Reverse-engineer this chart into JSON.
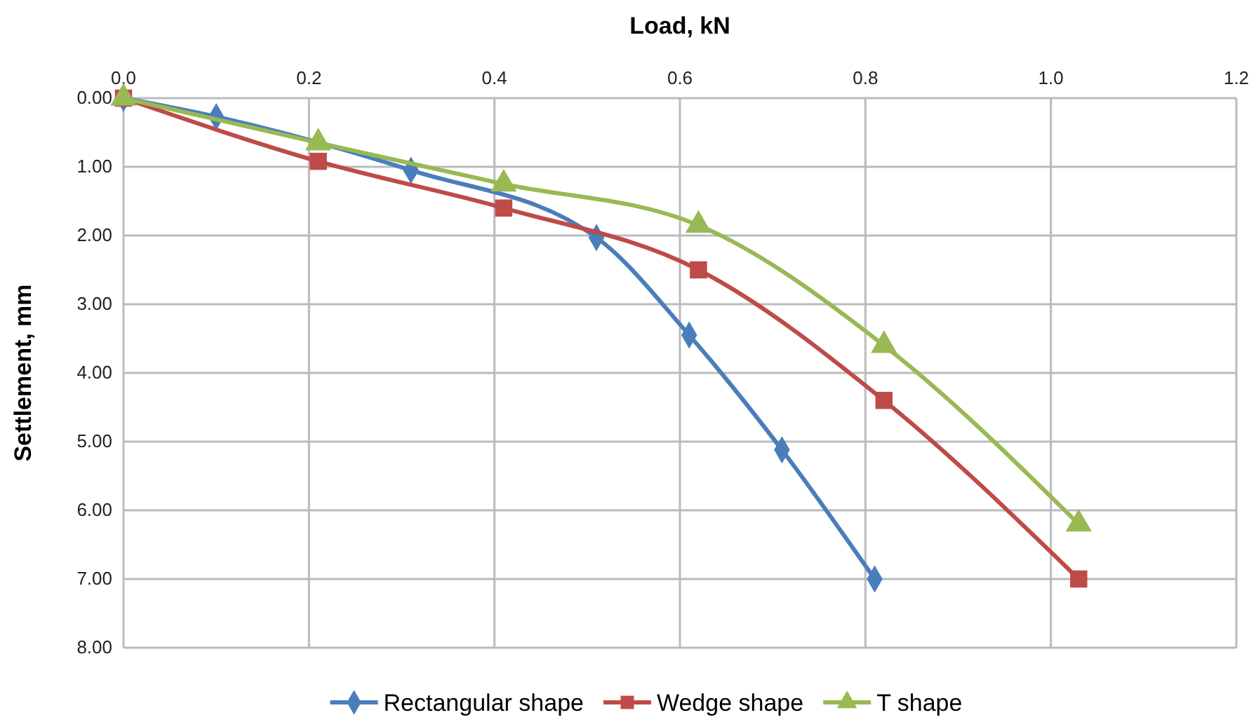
{
  "chart_data": {
    "type": "line",
    "xlabel": "Load, kN",
    "ylabel": "Settlement, mm",
    "xlim": [
      0,
      1.2
    ],
    "xticks": [
      {
        "value": 0,
        "label": "0.0"
      },
      {
        "value": 0.2,
        "label": "0.2"
      },
      {
        "value": 0.4,
        "label": "0.4"
      },
      {
        "value": 0.6,
        "label": "0.6"
      },
      {
        "value": 0.8,
        "label": "0.8"
      },
      {
        "value": 1.0,
        "label": "1.0"
      },
      {
        "value": 1.2,
        "label": "1.2"
      }
    ],
    "ylim": [
      8,
      0
    ],
    "yticks": [
      {
        "value": 0,
        "label": "0.00"
      },
      {
        "value": 1,
        "label": "1.00"
      },
      {
        "value": 2,
        "label": "2.00"
      },
      {
        "value": 3,
        "label": "3.00"
      },
      {
        "value": 4,
        "label": "4.00"
      },
      {
        "value": 5,
        "label": "5.00"
      },
      {
        "value": 6,
        "label": "6.00"
      },
      {
        "value": 7,
        "label": "7.00"
      },
      {
        "value": 8,
        "label": "8.00"
      }
    ],
    "grid": true,
    "legend": "bottom",
    "line_style": "solid",
    "series": [
      {
        "name": "Rectangular shape",
        "color": "#4a7ebb",
        "marker": "diamond",
        "x": [
          0,
          0.1,
          0.31,
          0.51,
          0.61,
          0.71,
          0.81
        ],
        "values": [
          0,
          0.27,
          1.05,
          2.03,
          3.45,
          5.12,
          7.0
        ]
      },
      {
        "name": "Wedge shape",
        "color": "#be4b48",
        "marker": "square",
        "x": [
          0,
          0.21,
          0.41,
          0.62,
          0.82,
          1.03
        ],
        "values": [
          0,
          0.92,
          1.6,
          2.5,
          4.4,
          7.0
        ]
      },
      {
        "name": "T shape",
        "color": "#98b954",
        "marker": "triangle",
        "x": [
          0,
          0.21,
          0.41,
          0.62,
          0.82,
          1.03
        ],
        "values": [
          0,
          0.65,
          1.25,
          1.85,
          3.6,
          6.2
        ]
      }
    ]
  }
}
